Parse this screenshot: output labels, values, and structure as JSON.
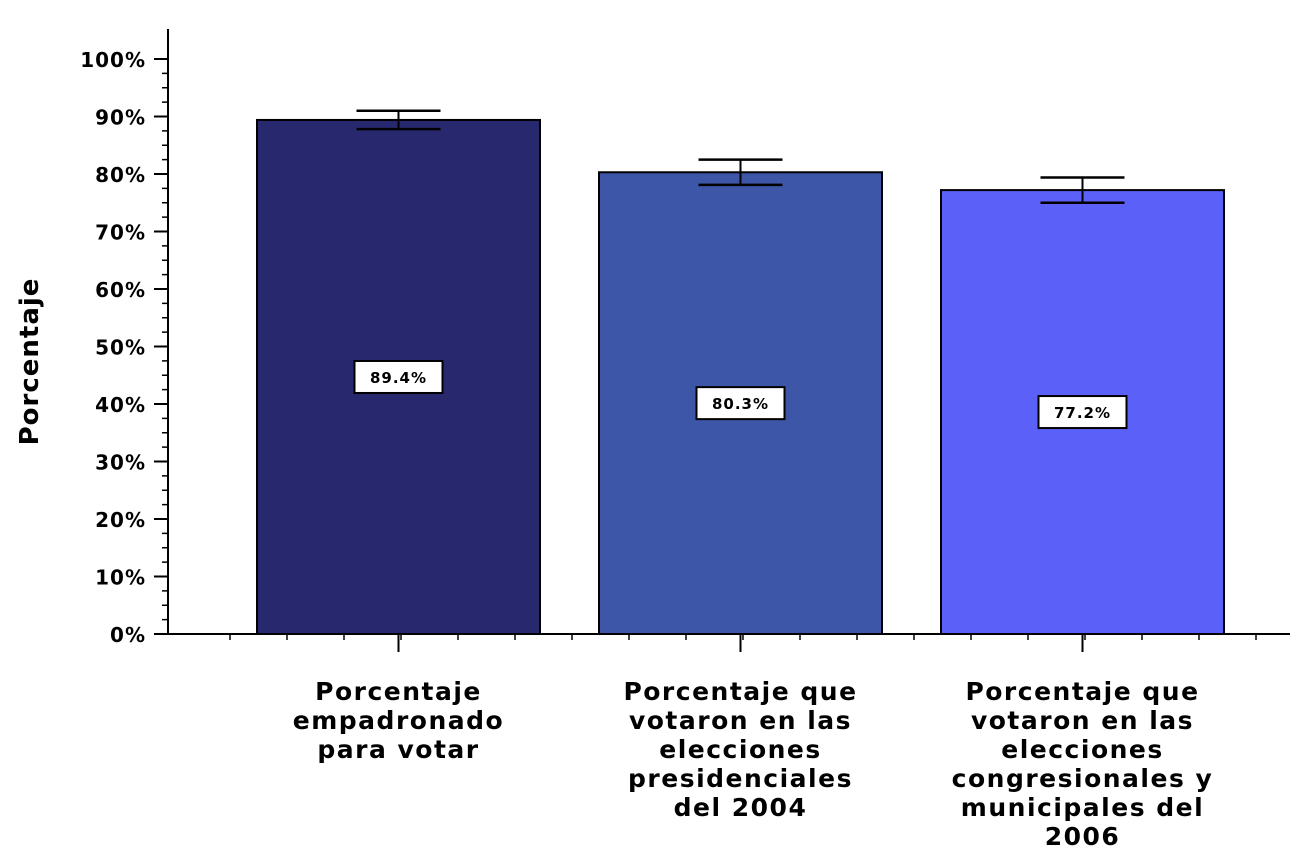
{
  "chart_data": {
    "type": "bar",
    "ylabel": "Porcentaje",
    "xlabel": "",
    "ylim": [
      0,
      100
    ],
    "yticks": [
      "0%",
      "10%",
      "20%",
      "30%",
      "40%",
      "50%",
      "60%",
      "70%",
      "80%",
      "90%",
      "100%"
    ],
    "grid": false,
    "categories": [
      [
        "Porcentaje",
        "empadronado",
        "para votar"
      ],
      [
        "Porcentaje que",
        "votaron en las",
        "elecciones",
        "presidenciales",
        "del 2004"
      ],
      [
        "Porcentaje que",
        "votaron en las",
        "elecciones",
        "congresionales y",
        "municipales del",
        "2006"
      ]
    ],
    "values": [
      89.4,
      80.3,
      77.2
    ],
    "data_labels": [
      "89.4%",
      "80.3%",
      "77.2%"
    ],
    "error_bars": [
      {
        "low": 87.8,
        "high": 91.0
      },
      {
        "low": 78.1,
        "high": 82.5
      },
      {
        "low": 75.0,
        "high": 79.4
      }
    ],
    "colors": [
      "#28286e",
      "#3d56a8",
      "#5a60f8"
    ]
  }
}
